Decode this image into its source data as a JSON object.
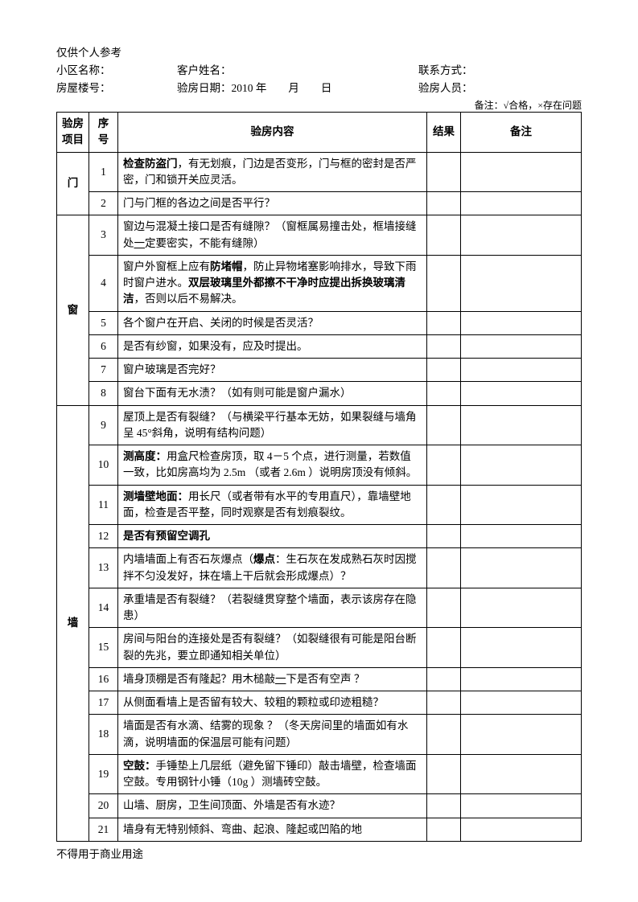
{
  "header": {
    "personal_use": "仅供个人参考",
    "community_label": "小区名称：",
    "customer_label": "客户姓名：",
    "contact_label": "联系方式：",
    "building_label": "房屋楼号：",
    "date_label": "验房日期：2010 年　　月　　日",
    "inspector_label": "验房人员：",
    "legend": "备注：√合格，×存在问题"
  },
  "table": {
    "headers": {
      "category": "验房项目",
      "seq": "序号",
      "content": "验房内容",
      "result": "结果",
      "remark": "备注"
    },
    "groups": [
      {
        "category": "门",
        "rows": [
          {
            "seq": "1",
            "content_parts": [
              {
                "t": "检查防盗门",
                "b": true
              },
              {
                "t": "，有无划痕，门边是否变形，门与框的密封是否严密，门和锁开关应灵活。"
              }
            ]
          },
          {
            "seq": "2",
            "content_parts": [
              {
                "t": "门与门框的各边之间是否平行？"
              }
            ]
          }
        ]
      },
      {
        "category": "窗",
        "rows": [
          {
            "seq": "3",
            "content_parts": [
              {
                "t": "窗边与混凝土接口是否有缝隙？（窗框属易撞击处，框墙接缝处"
              },
              {
                "t": "一",
                "b": false,
                "u": true
              },
              {
                "t": "定要密实，不能有缝隙）"
              }
            ]
          },
          {
            "seq": "4",
            "content_parts": [
              {
                "t": "窗户外窗框上应有"
              },
              {
                "t": "防堵帽",
                "b": true
              },
              {
                "t": "，防止异物堵塞影响排水，导致下雨时窗户进水。"
              },
              {
                "t": "双层玻璃里外都擦不干净时应提出拆换玻璃清洁",
                "b": true
              },
              {
                "t": "，否则以后不易解决。"
              }
            ]
          },
          {
            "seq": "5",
            "content_parts": [
              {
                "t": "各个窗户在开启、关闭的时候是否灵活？"
              }
            ]
          },
          {
            "seq": "6",
            "content_parts": [
              {
                "t": "是否有纱窗，如果没有，应及时提出。"
              }
            ]
          },
          {
            "seq": "7",
            "content_parts": [
              {
                "t": "窗户玻璃是否完好？"
              }
            ]
          },
          {
            "seq": "8",
            "content_parts": [
              {
                "t": "窗台下面有无水渍？（如有则可能是窗户漏水）"
              }
            ]
          }
        ]
      },
      {
        "category": "墙",
        "rows": [
          {
            "seq": "9",
            "content_parts": [
              {
                "t": "屋顶上是否有裂缝？（与横梁平行基本无妨，如果裂缝与墙角呈 45°斜角，说明有结构问题）"
              }
            ]
          },
          {
            "seq": "10",
            "content_parts": [
              {
                "t": "测高度：",
                "b": true
              },
              {
                "t": "用盒尺检查房顶，取 4－5 个点，进行测量，若数值一致，比如房高均为 2.5m （或者 2.6m ）说明房顶没有倾斜。"
              }
            ]
          },
          {
            "seq": "11",
            "content_parts": [
              {
                "t": "测墙壁地面：",
                "b": true
              },
              {
                "t": "用长尺（或者带有水平的专用直尺），靠墙壁地面，检查是否平整，同时观察是否有划痕裂纹。"
              }
            ]
          },
          {
            "seq": "12",
            "content_parts": [
              {
                "t": "是否有预留空调孔",
                "b": true
              }
            ]
          },
          {
            "seq": "13",
            "content_parts": [
              {
                "t": "内墙墙面上有否石灰爆点（"
              },
              {
                "t": "爆点",
                "b": true
              },
              {
                "t": "：生石灰在发成熟石灰时因搅拌不匀没发好，抹在墙上干后就会形成爆点）？"
              }
            ]
          },
          {
            "seq": "14",
            "content_parts": [
              {
                "t": "承重墙是否有裂缝？（若裂缝贯穿整个墙面，表示该房存在隐患）"
              }
            ]
          },
          {
            "seq": "15",
            "content_parts": [
              {
                "t": "房间与阳台的连接处是否有裂缝？（如裂缝很有可能是阳台断裂的先兆，要立即通知相关单位）"
              }
            ]
          },
          {
            "seq": "16",
            "content_parts": [
              {
                "t": "墙身顶棚是否有隆起？用木槌敲"
              },
              {
                "t": "一",
                "u": true
              },
              {
                "t": "下是否有空声 ？"
              }
            ]
          },
          {
            "seq": "17",
            "content_parts": [
              {
                "t": "从侧面看墙上是否留有较大、较粗的颗粒或印迹粗糙？"
              }
            ]
          },
          {
            "seq": "18",
            "content_parts": [
              {
                "t": "墙面是否有水滴、结雾的现象 ？（冬天房间里的墙面如有水滴，说明墙面的保温层可能有问题）"
              }
            ]
          },
          {
            "seq": "19",
            "content_parts": [
              {
                "t": "空鼓：",
                "b": true
              },
              {
                "t": "手锤垫上几层纸（避免留下锤印）敲击墙壁，检查墙面空鼓。专用钢针小锤（10g ）测墙砖空鼓。"
              }
            ]
          },
          {
            "seq": "20",
            "content_parts": [
              {
                "t": "山墙、厨房，卫生间顶面、外墙是否有水迹？"
              }
            ]
          },
          {
            "seq": "21",
            "content_parts": [
              {
                "t": "墙身有无特别倾斜、弯曲、起浪、隆起或凹陷的地"
              }
            ]
          }
        ]
      }
    ]
  },
  "footer": {
    "commercial_note": "不得用于商业用途"
  }
}
